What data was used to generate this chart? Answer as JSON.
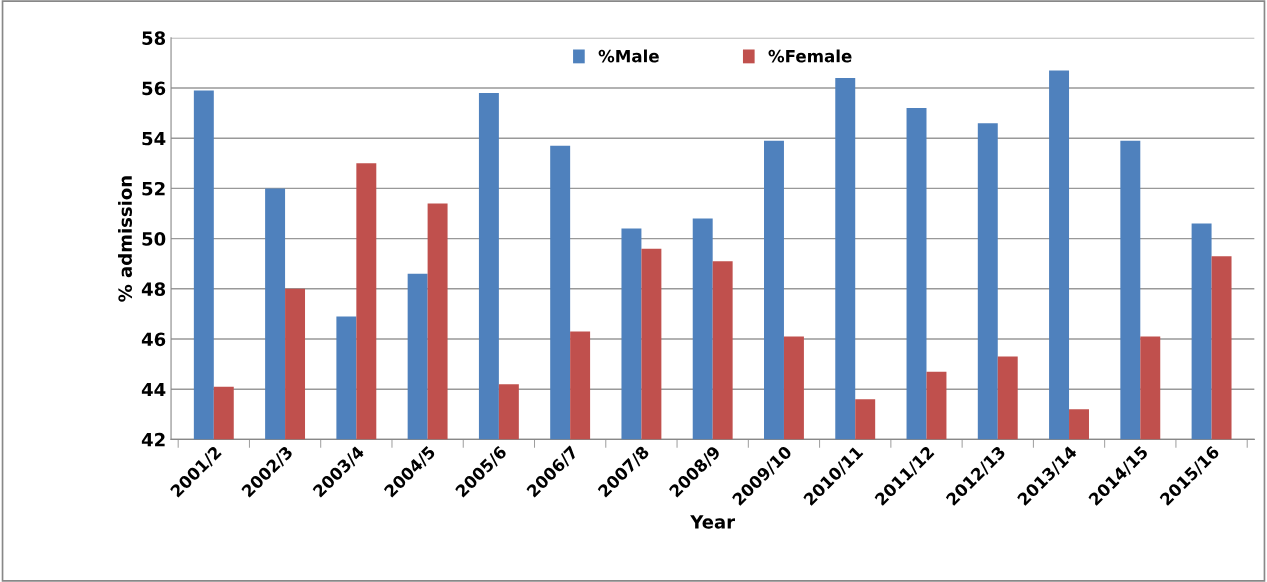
{
  "chart_data": {
    "type": "bar",
    "xlabel": "Year",
    "ylabel": "% admission",
    "categories": [
      "2001/2",
      "2002/3",
      "2003/4",
      "2004/5",
      "2005/6",
      "2006/7",
      "2007/8",
      "2008/9",
      "2009/10",
      "2010/11",
      "2011/12",
      "2012/13",
      "2013/14",
      "2014/15",
      "2015/16"
    ],
    "series": [
      {
        "name": "%Male",
        "color": "#4f81bd",
        "values": [
          55.9,
          52.0,
          46.9,
          48.6,
          55.8,
          53.7,
          50.4,
          50.8,
          53.9,
          56.4,
          55.2,
          54.6,
          56.7,
          53.9,
          50.6
        ]
      },
      {
        "name": "%Female",
        "color": "#c0504d",
        "values": [
          44.1,
          48.0,
          53.0,
          51.4,
          44.2,
          46.3,
          49.6,
          49.1,
          46.1,
          43.6,
          44.7,
          45.3,
          43.2,
          46.1,
          49.3
        ]
      }
    ],
    "ylim": [
      42,
      58
    ],
    "yticks": [
      42,
      44,
      46,
      48,
      50,
      52,
      54,
      56,
      58
    ],
    "grid": "y",
    "legend": "top"
  }
}
